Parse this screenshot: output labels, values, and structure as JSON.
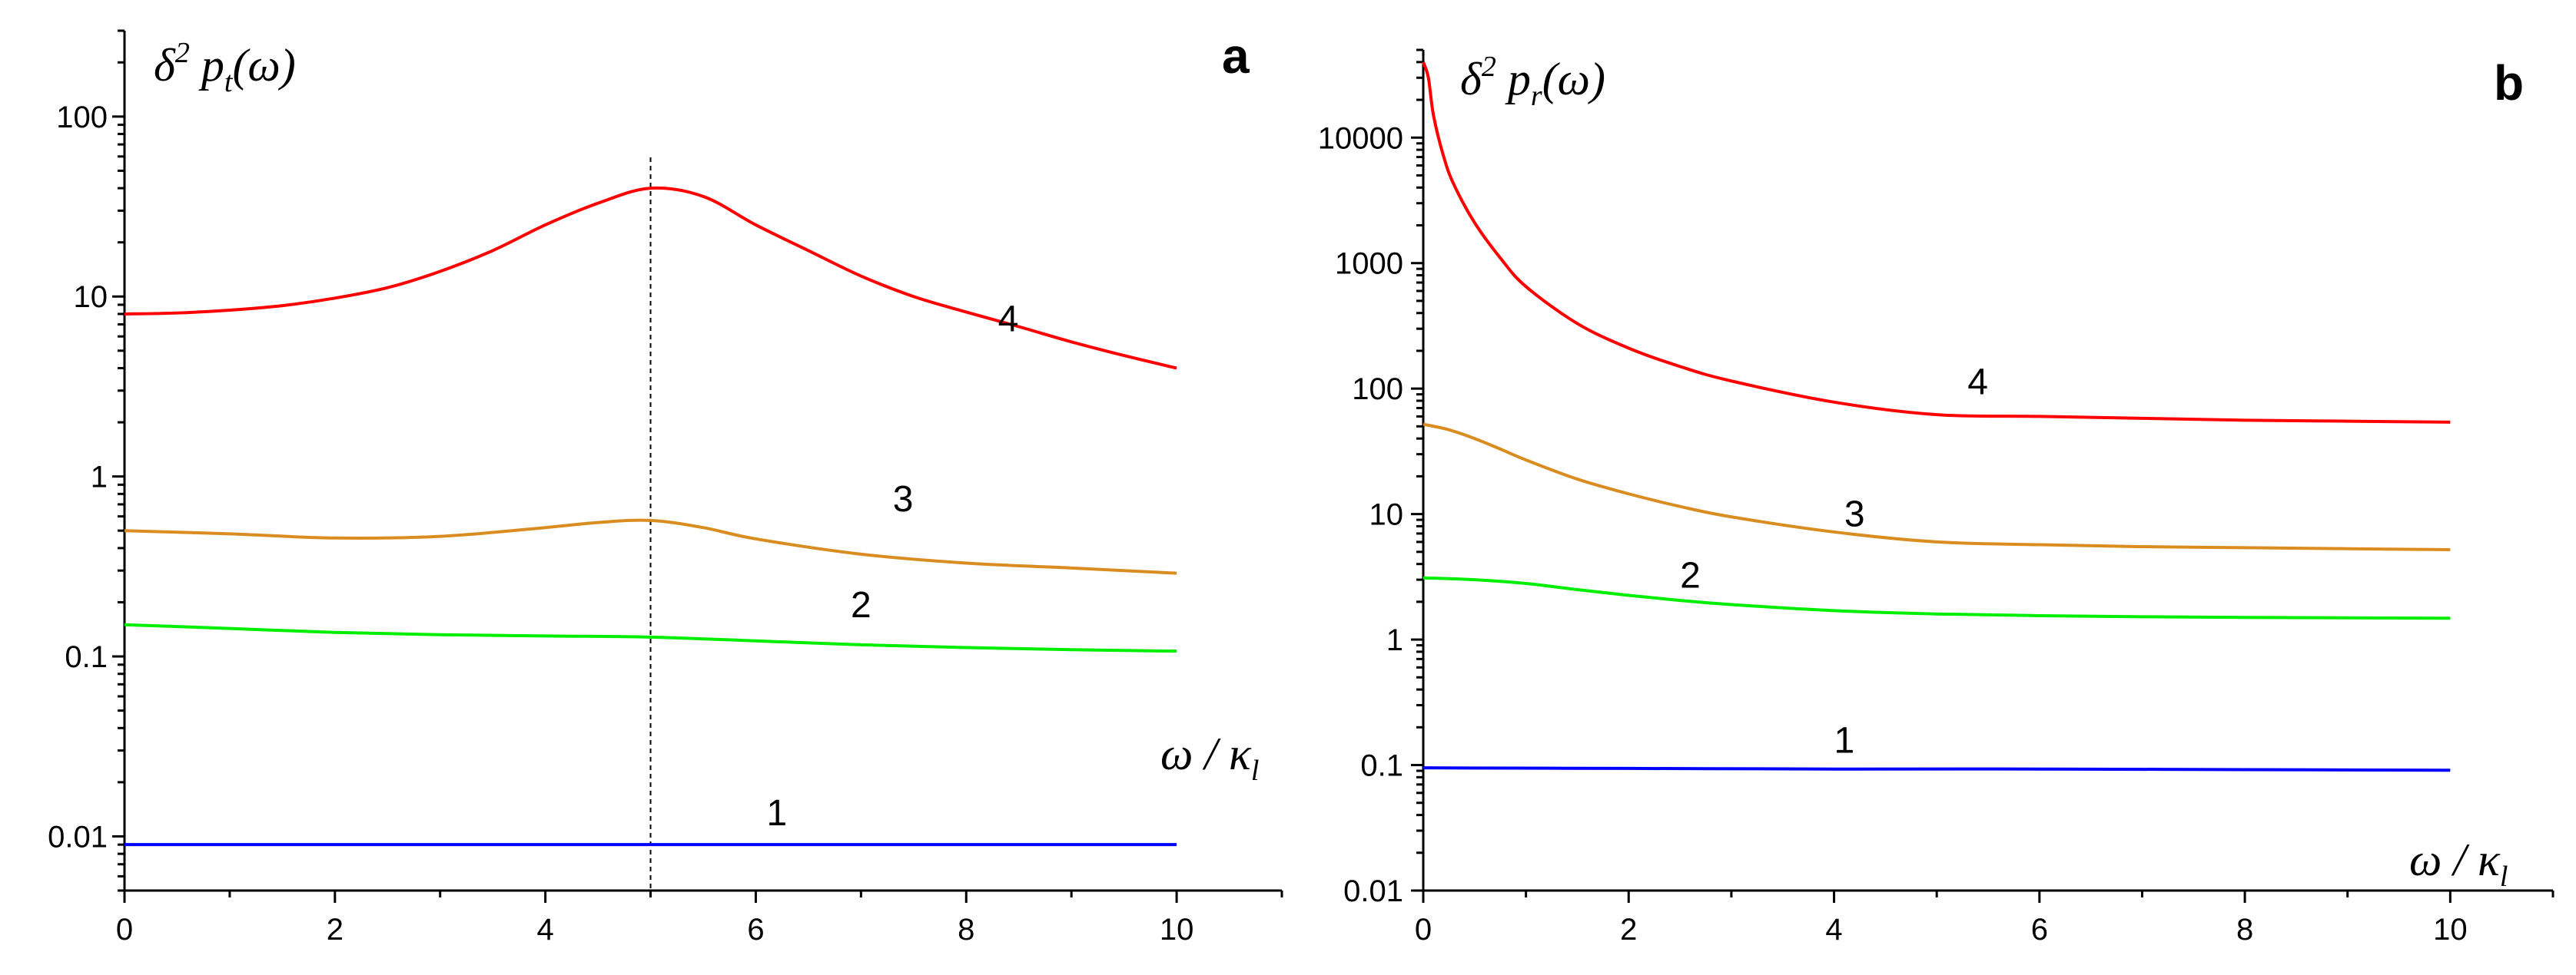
{
  "chart_data": [
    {
      "type": "line",
      "panel_label": "a",
      "ylabel": {
        "base": "δ",
        "sup": "2",
        "mid": " p",
        "sub": "t",
        "tail": "(ω)"
      },
      "xlabel": {
        "lead": "ω / κ",
        "sub": "l"
      },
      "yscale": "log",
      "ylim": [
        0.005,
        300
      ],
      "xlim": [
        0,
        11
      ],
      "xticks": [
        0,
        2,
        4,
        6,
        8,
        10
      ],
      "yticks": [
        0.01,
        0.1,
        1,
        10,
        100
      ],
      "ytick_labels": [
        "0.01",
        "0.1",
        "1",
        "10",
        "100"
      ],
      "xtick_labels": [
        "0",
        "2",
        "4",
        "6",
        "8",
        "10"
      ],
      "vertical_marker_x": 5,
      "series": [
        {
          "name": "1",
          "color": "#0000ff",
          "label_pos": [
            6.2,
            0.0115
          ],
          "x": [
            0,
            2,
            4,
            5,
            6,
            8,
            10
          ],
          "y": [
            0.009,
            0.009,
            0.009,
            0.009,
            0.009,
            0.009,
            0.009
          ]
        },
        {
          "name": "2",
          "color": "#00ee00",
          "label_pos": [
            7.0,
            0.165
          ],
          "x": [
            0,
            1,
            2,
            3,
            4,
            5,
            6,
            7,
            8,
            9,
            10
          ],
          "y": [
            0.15,
            0.143,
            0.136,
            0.132,
            0.13,
            0.128,
            0.122,
            0.116,
            0.112,
            0.109,
            0.107
          ]
        },
        {
          "name": "3",
          "color": "#d98c20",
          "label_pos": [
            7.4,
            0.64
          ],
          "x": [
            0,
            1,
            2,
            3,
            4,
            4.5,
            5,
            5.5,
            6,
            7,
            8,
            9,
            10
          ],
          "y": [
            0.5,
            0.48,
            0.455,
            0.465,
            0.52,
            0.555,
            0.57,
            0.52,
            0.45,
            0.37,
            0.33,
            0.31,
            0.29
          ]
        },
        {
          "name": "4",
          "color": "#ff0000",
          "label_pos": [
            8.4,
            6.4
          ],
          "x": [
            0,
            0.5,
            1,
            1.5,
            2,
            2.5,
            3,
            3.5,
            4,
            4.5,
            5,
            5.5,
            6,
            6.5,
            7,
            7.5,
            8,
            8.5,
            9,
            9.5,
            10
          ],
          "y": [
            8.0,
            8.1,
            8.4,
            8.9,
            9.8,
            11.2,
            13.8,
            18,
            25,
            33,
            40,
            36,
            25,
            18,
            13,
            10,
            8.2,
            6.8,
            5.6,
            4.7,
            4.0
          ]
        }
      ]
    },
    {
      "type": "line",
      "panel_label": "b",
      "ylabel": {
        "base": "δ",
        "sup": "2",
        "mid": " p",
        "sub": "r",
        "tail": "(ω)"
      },
      "xlabel": {
        "lead": "ω / κ",
        "sub": "l"
      },
      "yscale": "log",
      "ylim": [
        0.01,
        50000
      ],
      "xlim": [
        0,
        11
      ],
      "xticks": [
        0,
        2,
        4,
        6,
        8,
        10
      ],
      "yticks": [
        0.01,
        0.1,
        1,
        10,
        100,
        1000,
        10000
      ],
      "ytick_labels": [
        "0.01",
        "0.1",
        "1",
        "10",
        "100",
        "1000",
        "10000"
      ],
      "xtick_labels": [
        "0",
        "2",
        "4",
        "6",
        "8",
        "10"
      ],
      "series": [
        {
          "name": "1",
          "color": "#0000ff",
          "label_pos": [
            4.1,
            0.125
          ],
          "x": [
            0,
            2,
            4,
            6,
            8,
            10
          ],
          "y": [
            0.095,
            0.094,
            0.093,
            0.093,
            0.092,
            0.091
          ]
        },
        {
          "name": "2",
          "color": "#00ee00",
          "label_pos": [
            2.6,
            2.6
          ],
          "x": [
            0,
            0.5,
            1,
            1.5,
            2,
            2.5,
            3,
            4,
            5,
            6,
            7,
            8,
            9,
            10
          ],
          "y": [
            3.1,
            3.0,
            2.8,
            2.5,
            2.25,
            2.05,
            1.9,
            1.7,
            1.6,
            1.55,
            1.52,
            1.5,
            1.49,
            1.48
          ]
        },
        {
          "name": "3",
          "color": "#d98c20",
          "label_pos": [
            4.2,
            8.0
          ],
          "x": [
            0,
            0.25,
            0.5,
            0.75,
            1,
            1.5,
            2,
            2.5,
            3,
            4,
            5,
            6,
            7,
            8,
            9,
            10
          ],
          "y": [
            52,
            47,
            40,
            33,
            27,
            19,
            14.5,
            11.5,
            9.5,
            7.2,
            6.0,
            5.7,
            5.5,
            5.4,
            5.3,
            5.2
          ]
        },
        {
          "name": "4",
          "color": "#ff0000",
          "label_pos": [
            5.4,
            90
          ],
          "x": [
            0,
            0.05,
            0.1,
            0.2,
            0.3,
            0.5,
            0.75,
            1,
            1.5,
            2,
            2.5,
            3,
            4,
            5,
            6,
            7,
            8,
            9,
            10
          ],
          "y": [
            40000,
            30000,
            15000,
            7000,
            4200,
            2100,
            1100,
            650,
            330,
            210,
            150,
            115,
            78,
            62,
            60,
            58,
            56,
            55,
            54
          ]
        }
      ]
    }
  ]
}
